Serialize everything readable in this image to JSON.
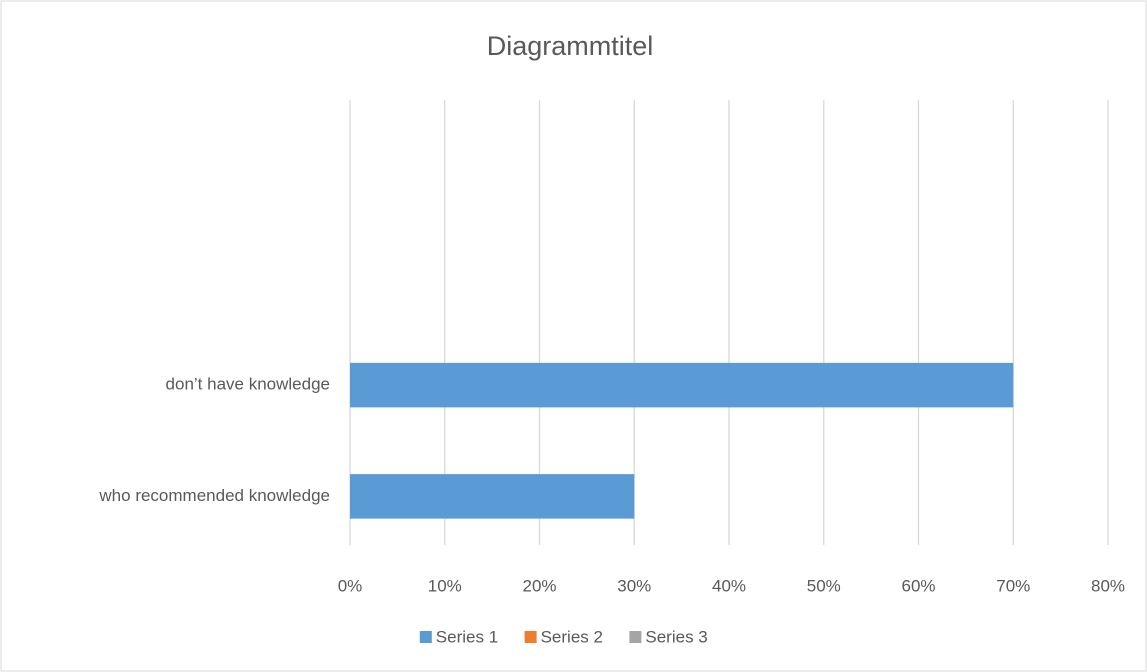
{
  "chart_data": {
    "type": "bar",
    "orientation": "horizontal",
    "title": "Diagrammtitel",
    "categories": [
      "who recommended knowledge",
      "don’t have knowledge",
      null,
      null
    ],
    "series": [
      {
        "name": "Series 1",
        "color": "#5b9bd5",
        "values": [
          30,
          70,
          null,
          null
        ]
      },
      {
        "name": "Series 2",
        "color": "#ed7d31",
        "values": [
          null,
          null,
          null,
          null
        ]
      },
      {
        "name": "Series 3",
        "color": "#a5a5a5",
        "values": [
          null,
          null,
          null,
          null
        ]
      }
    ],
    "xlim": [
      0,
      80
    ],
    "xticks": [
      {
        "value": 0,
        "label": "0%"
      },
      {
        "value": 10,
        "label": "10%"
      },
      {
        "value": 20,
        "label": "20%"
      },
      {
        "value": 30,
        "label": "30%"
      },
      {
        "value": 40,
        "label": "40%"
      },
      {
        "value": 50,
        "label": "50%"
      },
      {
        "value": 60,
        "label": "60%"
      },
      {
        "value": 70,
        "label": "70%"
      },
      {
        "value": 80,
        "label": "80%"
      }
    ],
    "grid": true,
    "legend": "bottom"
  }
}
